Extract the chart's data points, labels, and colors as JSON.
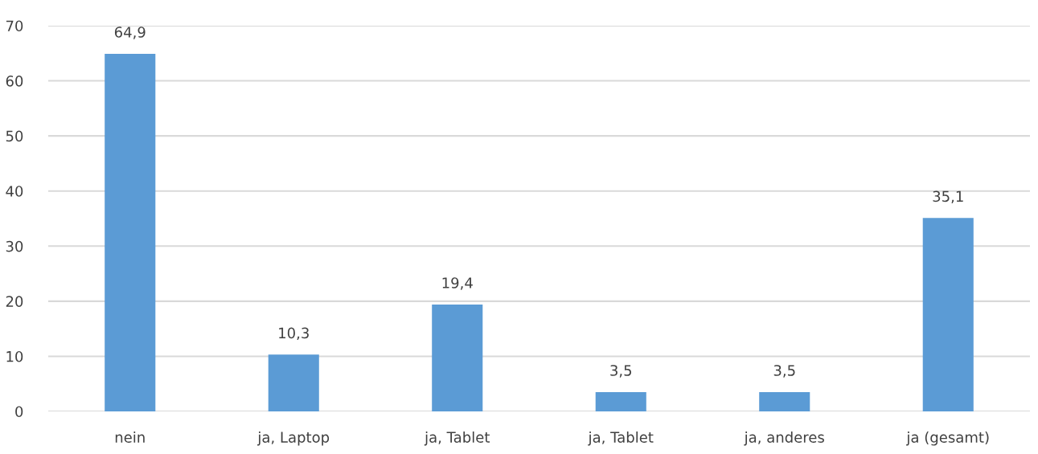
{
  "chart_data": {
    "type": "bar",
    "categories": [
      "nein",
      "ja, Laptop",
      "ja, Tablet",
      "ja, Tablet",
      "ja, anderes",
      "ja (gesamt)"
    ],
    "values": [
      64.9,
      10.3,
      19.4,
      3.5,
      3.5,
      35.1
    ],
    "value_labels": [
      "64,9",
      "10,3",
      "19,4",
      "3,5",
      "3,5",
      "35,1"
    ],
    "color": "#5b9bd5",
    "ylim": [
      0,
      70
    ],
    "yticks": [
      0,
      10,
      20,
      30,
      40,
      50,
      60,
      70
    ],
    "grid": "y"
  }
}
